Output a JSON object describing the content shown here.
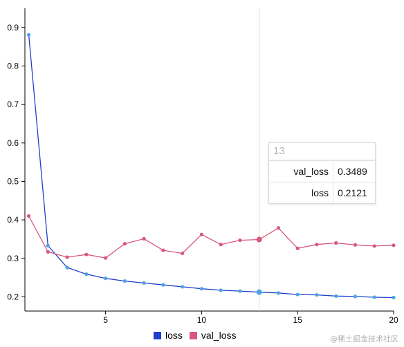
{
  "chart_data": {
    "type": "line",
    "title": "",
    "xlabel": "",
    "ylabel": "",
    "x": [
      1,
      2,
      3,
      4,
      5,
      6,
      7,
      8,
      9,
      10,
      11,
      12,
      13,
      14,
      15,
      16,
      17,
      18,
      19,
      20
    ],
    "xlim": [
      0.8,
      20
    ],
    "ylim": [
      0.163,
      0.95
    ],
    "xticks": [
      5,
      10,
      15,
      20
    ],
    "yticks": [
      0.2,
      0.3,
      0.4,
      0.5,
      0.6,
      0.7,
      0.8,
      0.9
    ],
    "grid": false,
    "legend": "bottom-center",
    "series": [
      {
        "name": "loss",
        "line_color": "#1f3fcc",
        "marker_color": "#4aa3e8",
        "values": [
          0.881,
          0.333,
          0.276,
          0.259,
          0.248,
          0.241,
          0.236,
          0.231,
          0.226,
          0.221,
          0.217,
          0.215,
          0.2121,
          0.21,
          0.206,
          0.205,
          0.202,
          0.201,
          0.199,
          0.198
        ]
      },
      {
        "name": "val_loss",
        "line_color": "#d9577a",
        "marker_color": "#d9577a",
        "values": [
          0.41,
          0.317,
          0.303,
          0.31,
          0.301,
          0.338,
          0.351,
          0.321,
          0.313,
          0.362,
          0.336,
          0.347,
          0.3489,
          0.379,
          0.326,
          0.336,
          0.34,
          0.335,
          0.332,
          0.334
        ]
      }
    ],
    "crosshair_x": 13,
    "tooltip": {
      "title": "13",
      "rows": [
        {
          "label": "val_loss",
          "value": "0.3489"
        },
        {
          "label": "loss",
          "value": "0.2121"
        }
      ]
    }
  },
  "watermark": "@稀土掘金技术社区"
}
